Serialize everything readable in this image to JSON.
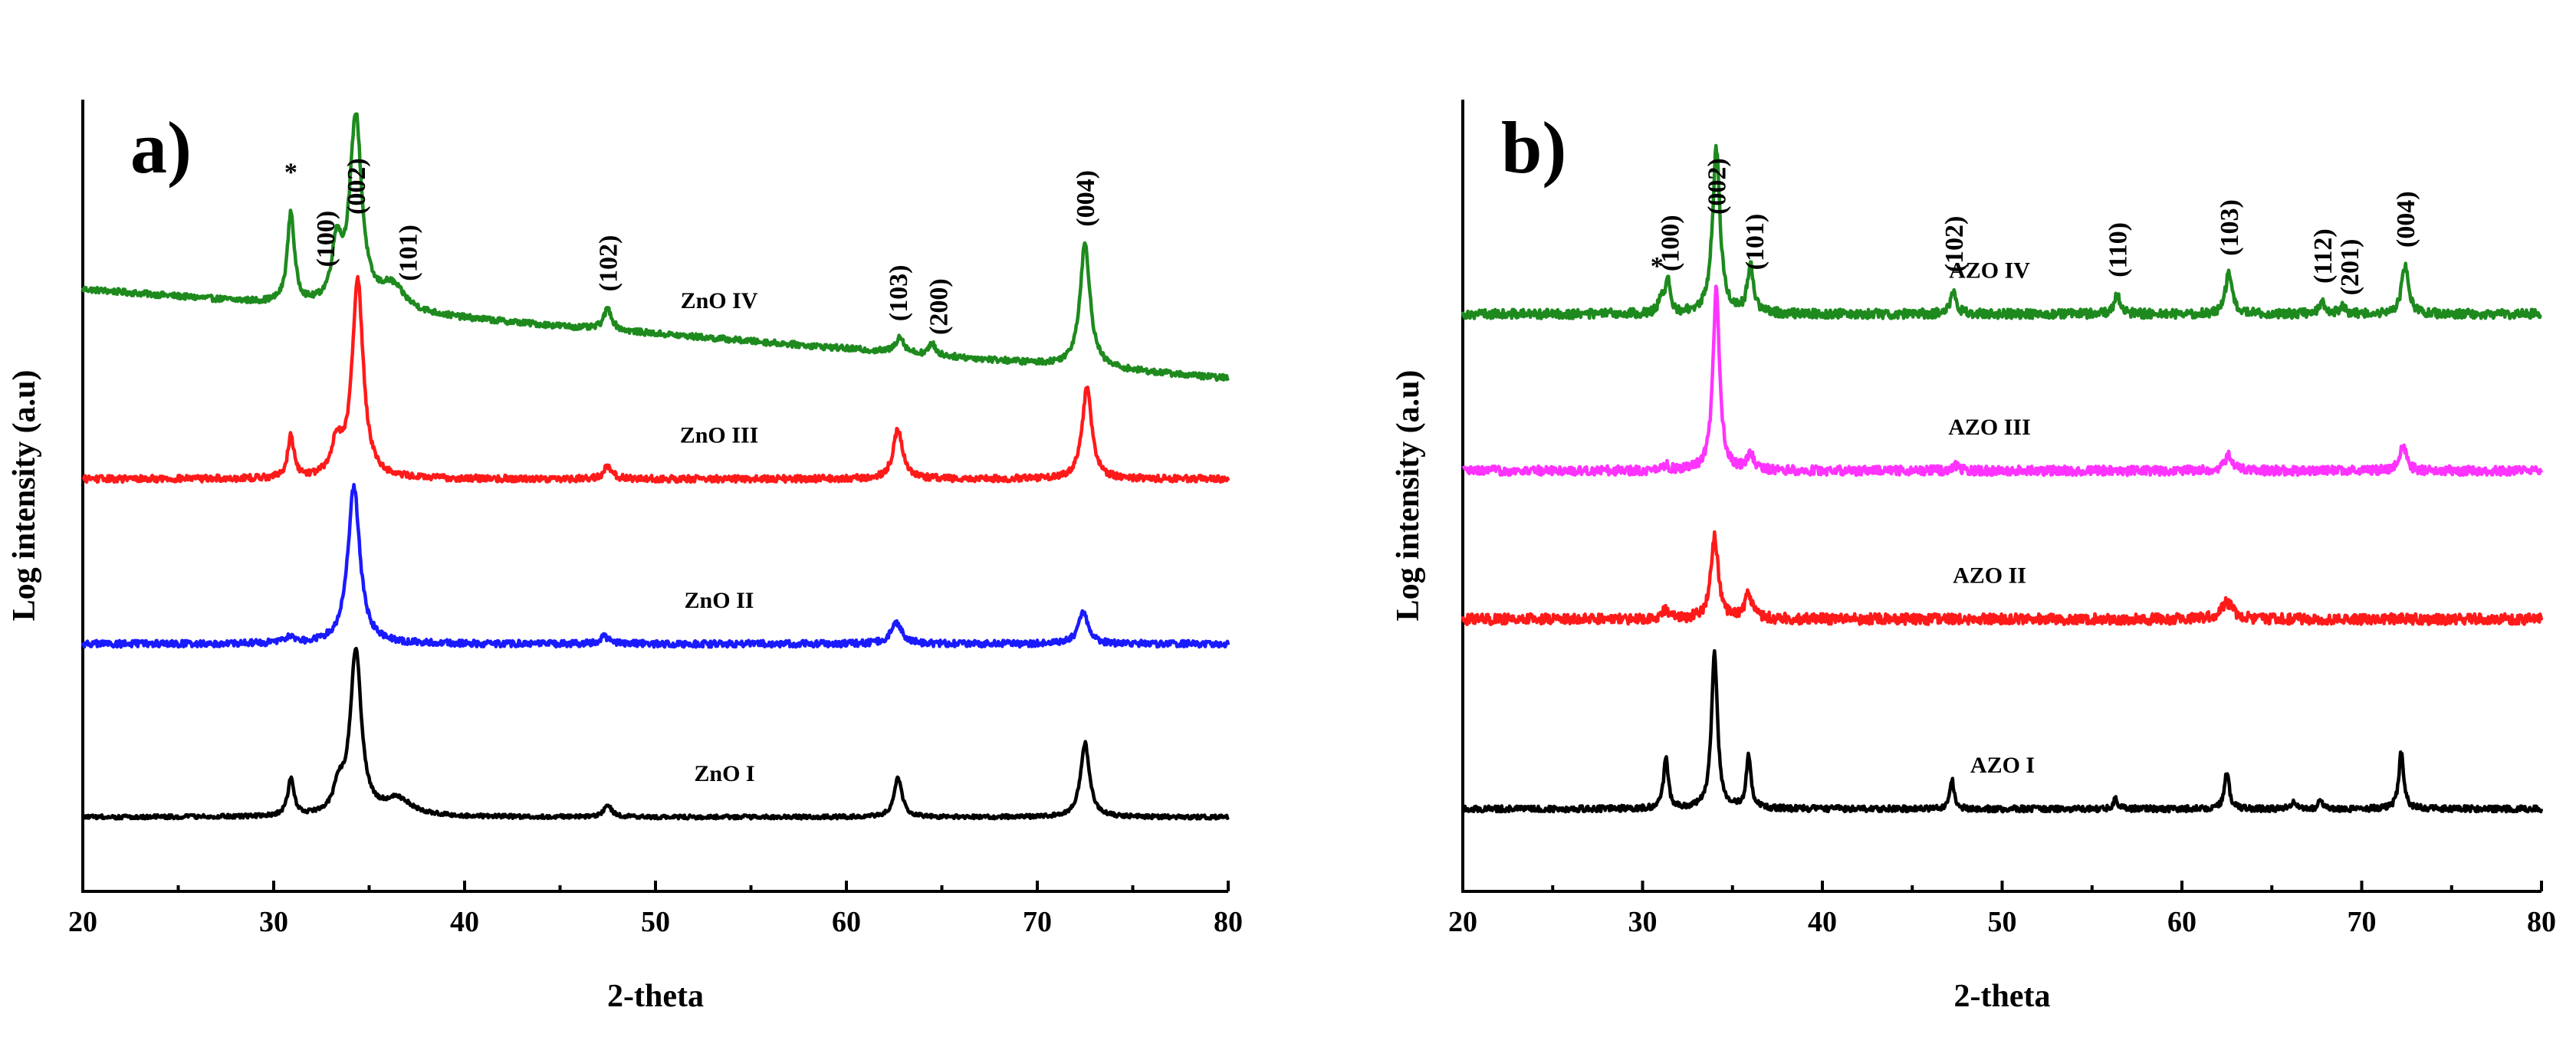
{
  "chart_data": [
    {
      "type": "line",
      "panel_label": "a)",
      "xlabel": "2-theta",
      "ylabel": "Log intensity (a.u)",
      "xlim": [
        20,
        80
      ],
      "xticks": [
        20,
        30,
        40,
        50,
        60,
        70,
        80
      ],
      "yticks": "none",
      "series": [
        {
          "name": "ZnO IV",
          "color": "#1e8a1e",
          "offset": 3.0,
          "baseline_slope": -0.09,
          "base": 0.3,
          "noise": 0.018,
          "peaks": [
            [
              30.9,
              0.55,
              0.22
            ],
            [
              33.3,
              0.35,
              0.3
            ],
            [
              34.3,
              1.15,
              0.38
            ],
            [
              36.2,
              0.15,
              0.8
            ],
            [
              47.5,
              0.13,
              0.25
            ],
            [
              62.8,
              0.1,
              0.25
            ],
            [
              64.5,
              0.07,
              0.2
            ],
            [
              72.5,
              0.75,
              0.32
            ]
          ]
        },
        {
          "name": "ZnO III",
          "color": "#ff1a1a",
          "offset": 2.1,
          "baseline_slope": 0.0,
          "base": 0.05,
          "noise": 0.02,
          "peaks": [
            [
              30.9,
              0.25,
              0.2
            ],
            [
              33.3,
              0.2,
              0.3
            ],
            [
              34.4,
              1.2,
              0.35
            ],
            [
              47.5,
              0.08,
              0.25
            ],
            [
              62.7,
              0.3,
              0.3
            ],
            [
              72.6,
              0.55,
              0.3
            ]
          ]
        },
        {
          "name": "ZnO II",
          "color": "#1a1aff",
          "offset": 1.05,
          "baseline_slope": 0.0,
          "base": 0.1,
          "noise": 0.02,
          "peaks": [
            [
              30.8,
              0.04,
              0.3
            ],
            [
              34.2,
              0.95,
              0.38
            ],
            [
              47.3,
              0.05,
              0.25
            ],
            [
              62.6,
              0.13,
              0.35
            ],
            [
              72.4,
              0.2,
              0.3
            ]
          ]
        },
        {
          "name": "ZnO I",
          "color": "#000000",
          "offset": 0.0,
          "baseline_slope": 0.0,
          "base": 0.1,
          "noise": 0.012,
          "peaks": [
            [
              30.9,
              0.22,
              0.2
            ],
            [
              33.4,
              0.15,
              0.3
            ],
            [
              34.3,
              1.0,
              0.35
            ],
            [
              36.5,
              0.1,
              0.9
            ],
            [
              47.5,
              0.07,
              0.25
            ],
            [
              62.7,
              0.24,
              0.25
            ],
            [
              72.5,
              0.45,
              0.28
            ]
          ]
        }
      ],
      "annotations": [
        {
          "text": "*",
          "x": 30.9
        },
        {
          "text": "(100)",
          "x": 32.7
        },
        {
          "text": "(002)",
          "x": 34.3
        },
        {
          "text": "(101)",
          "x": 37.0
        },
        {
          "text": "(102)",
          "x": 47.5
        },
        {
          "text": "(103)",
          "x": 62.7
        },
        {
          "text": "(200)",
          "x": 64.8
        },
        {
          "text": "(004)",
          "x": 72.5
        }
      ]
    },
    {
      "type": "line",
      "panel_label": "b)",
      "xlabel": "2-theta",
      "ylabel": "Log intensity (a.u)",
      "xlim": [
        20,
        80
      ],
      "xticks": [
        20,
        30,
        40,
        50,
        60,
        70,
        80
      ],
      "yticks": "none",
      "series": [
        {
          "name": "AZO IV",
          "color": "#1e8a1e",
          "offset": 3.05,
          "baseline_slope": 0.0,
          "base": 0.1,
          "noise": 0.028,
          "peaks": [
            [
              31.0,
              0.1,
              0.15
            ],
            [
              31.4,
              0.2,
              0.15
            ],
            [
              34.1,
              1.0,
              0.25
            ],
            [
              36.0,
              0.3,
              0.2
            ],
            [
              47.3,
              0.15,
              0.18
            ],
            [
              56.4,
              0.12,
              0.18
            ],
            [
              62.6,
              0.25,
              0.22
            ],
            [
              67.8,
              0.08,
              0.18
            ],
            [
              68.9,
              0.05,
              0.18
            ],
            [
              72.4,
              0.3,
              0.22
            ]
          ]
        },
        {
          "name": "AZO III",
          "color": "#ff33ff",
          "offset": 2.1,
          "baseline_slope": 0.0,
          "base": 0.1,
          "noise": 0.028,
          "peaks": [
            [
              31.3,
              0.03,
              0.2
            ],
            [
              34.1,
              1.1,
              0.22
            ],
            [
              36.0,
              0.1,
              0.2
            ],
            [
              47.4,
              0.03,
              0.2
            ],
            [
              62.6,
              0.1,
              0.25
            ],
            [
              72.3,
              0.15,
              0.22
            ]
          ]
        },
        {
          "name": "AZO II",
          "color": "#ff1a1a",
          "offset": 1.05,
          "baseline_slope": 0.0,
          "base": 0.25,
          "noise": 0.032,
          "peaks": [
            [
              31.3,
              0.05,
              0.3
            ],
            [
              34.0,
              0.5,
              0.25
            ],
            [
              35.9,
              0.15,
              0.25
            ],
            [
              62.5,
              0.1,
              0.4
            ]
          ]
        },
        {
          "name": "AZO I",
          "color": "#000000",
          "offset": 0.0,
          "baseline_slope": 0.0,
          "base": 0.15,
          "noise": 0.018,
          "peaks": [
            [
              31.3,
              0.3,
              0.16
            ],
            [
              34.0,
              0.95,
              0.2
            ],
            [
              35.9,
              0.32,
              0.16
            ],
            [
              47.2,
              0.18,
              0.14
            ],
            [
              56.3,
              0.06,
              0.14
            ],
            [
              62.5,
              0.22,
              0.16
            ],
            [
              66.2,
              0.05,
              0.14
            ],
            [
              67.7,
              0.05,
              0.14
            ],
            [
              72.2,
              0.35,
              0.16
            ]
          ]
        }
      ],
      "annotations": [
        {
          "text": "*",
          "x": 30.8
        },
        {
          "text": "(100)",
          "x": 31.5
        },
        {
          "text": "(002)",
          "x": 34.1
        },
        {
          "text": "(101)",
          "x": 36.2
        },
        {
          "text": "(102)",
          "x": 47.3
        },
        {
          "text": "(110)",
          "x": 56.4
        },
        {
          "text": "(103)",
          "x": 62.6
        },
        {
          "text": "(112)",
          "x": 67.8
        },
        {
          "text": "(201)",
          "x": 69.3
        },
        {
          "text": "(004)",
          "x": 72.4
        }
      ]
    }
  ]
}
